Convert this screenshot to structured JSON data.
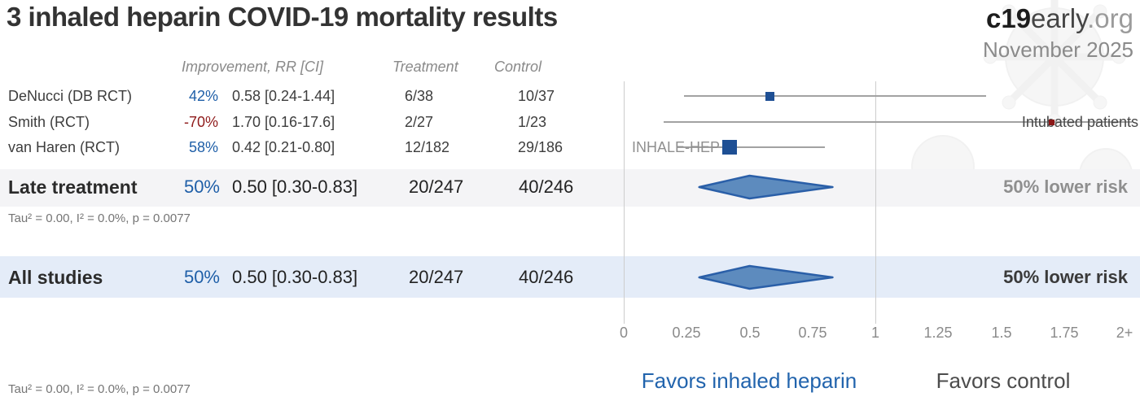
{
  "header": {
    "title": "3 inhaled heparin COVID-19 mortality results",
    "brand": {
      "part1": "c19",
      "part2": "early",
      "part3": ".org"
    },
    "date": "November 2025"
  },
  "columns": {
    "improvement": "Improvement, RR [CI]",
    "treatment": "Treatment",
    "control": "Control"
  },
  "rows": [
    {
      "name": "DeNucci (DB RCT)",
      "improvement": "42%",
      "rr_ci": "0.58 [0.24-1.44]",
      "treatment": "6/38",
      "control": "10/37"
    },
    {
      "name": "Smith (RCT)",
      "improvement": "-70%",
      "rr_ci": "1.70 [0.16-17.6]",
      "treatment": "2/27",
      "control": "1/23"
    },
    {
      "name": "van Haren (RCT)",
      "improvement": "58%",
      "rr_ci": "0.42 [0.21-0.80]",
      "treatment": "12/182",
      "control": "29/186"
    }
  ],
  "summary_rows": [
    {
      "name": "Late treatment",
      "improvement": "50%",
      "rr_ci": "0.50 [0.30-0.83]",
      "treatment": "20/247",
      "control": "40/246",
      "risk_label": "50% lower risk",
      "heterogeneity": "Tau² = 0.00, I² = 0.0%, p = 0.0077"
    },
    {
      "name": "All studies",
      "improvement": "50%",
      "rr_ci": "0.50 [0.30-0.83]",
      "treatment": "20/247",
      "control": "40/246",
      "risk_label": "50% lower risk"
    }
  ],
  "plot_annotations": {
    "smith": "Intubated patients",
    "van_haren": "INHALE-HEP"
  },
  "axis": {
    "ticks": [
      "0",
      "0.25",
      "0.5",
      "0.75",
      "1",
      "1.25",
      "1.5",
      "1.75",
      "2+"
    ],
    "favors_left": "Favors inhaled heparin",
    "favors_right": "Favors control"
  },
  "footnote": "Tau² = 0.00, I² = 0.0%, p = 0.0077",
  "colors": {
    "positive": "#1f5fa8",
    "negative": "#8f1b1b",
    "band_gray": "#f4f4f6",
    "band_blue": "#e4ecf8",
    "diamond_fill": "#5d8bbe",
    "diamond_stroke": "#2a5fa8",
    "ci_line": "#a2a2a2",
    "favors_blue": "#2264ad",
    "favors_gray": "#4c4c4c",
    "risk_late": "#8f8f8f",
    "risk_all": "#3a3a3a"
  },
  "chart_data": {
    "type": "scatter",
    "subtype": "forest-plot",
    "title": "3 inhaled heparin COVID-19 mortality results",
    "x_axis": {
      "range": [
        0,
        2
      ],
      "ticks": [
        0,
        0.25,
        0.5,
        0.75,
        1,
        1.25,
        1.5,
        1.75,
        2
      ],
      "reference_line": 1,
      "gridlines_at": [
        0,
        1
      ],
      "label_left": "Favors inhaled heparin",
      "label_right": "Favors control"
    },
    "studies": [
      {
        "name": "DeNucci (DB RCT)",
        "rr": 0.58,
        "ci": [
          0.24,
          1.44
        ],
        "improvement_pct": 42,
        "treatment_events": "6/38",
        "control_events": "10/37",
        "marker_size": 11,
        "marker_color": "#1e4f94"
      },
      {
        "name": "Smith (RCT)",
        "rr": 1.7,
        "ci": [
          0.16,
          17.6
        ],
        "improvement_pct": -70,
        "treatment_events": "2/27",
        "control_events": "1/23",
        "marker_size": 7,
        "marker_color": "#8b1717",
        "annotation": "Intubated patients"
      },
      {
        "name": "van Haren (RCT)",
        "rr": 0.42,
        "ci": [
          0.21,
          0.8
        ],
        "improvement_pct": 58,
        "treatment_events": "12/182",
        "control_events": "29/186",
        "marker_size": 18,
        "marker_color": "#1e4f94",
        "annotation": "INHALE-HEP"
      }
    ],
    "summaries": [
      {
        "name": "Late treatment",
        "rr": 0.5,
        "ci": [
          0.3,
          0.83
        ],
        "improvement_pct": 50,
        "treatment_events": "20/247",
        "control_events": "40/246",
        "tau2": 0.0,
        "i2_pct": 0.0,
        "p": 0.0077
      },
      {
        "name": "All studies",
        "rr": 0.5,
        "ci": [
          0.3,
          0.83
        ],
        "improvement_pct": 50,
        "treatment_events": "20/247",
        "control_events": "40/246",
        "tau2": 0.0,
        "i2_pct": 0.0,
        "p": 0.0077
      }
    ]
  }
}
